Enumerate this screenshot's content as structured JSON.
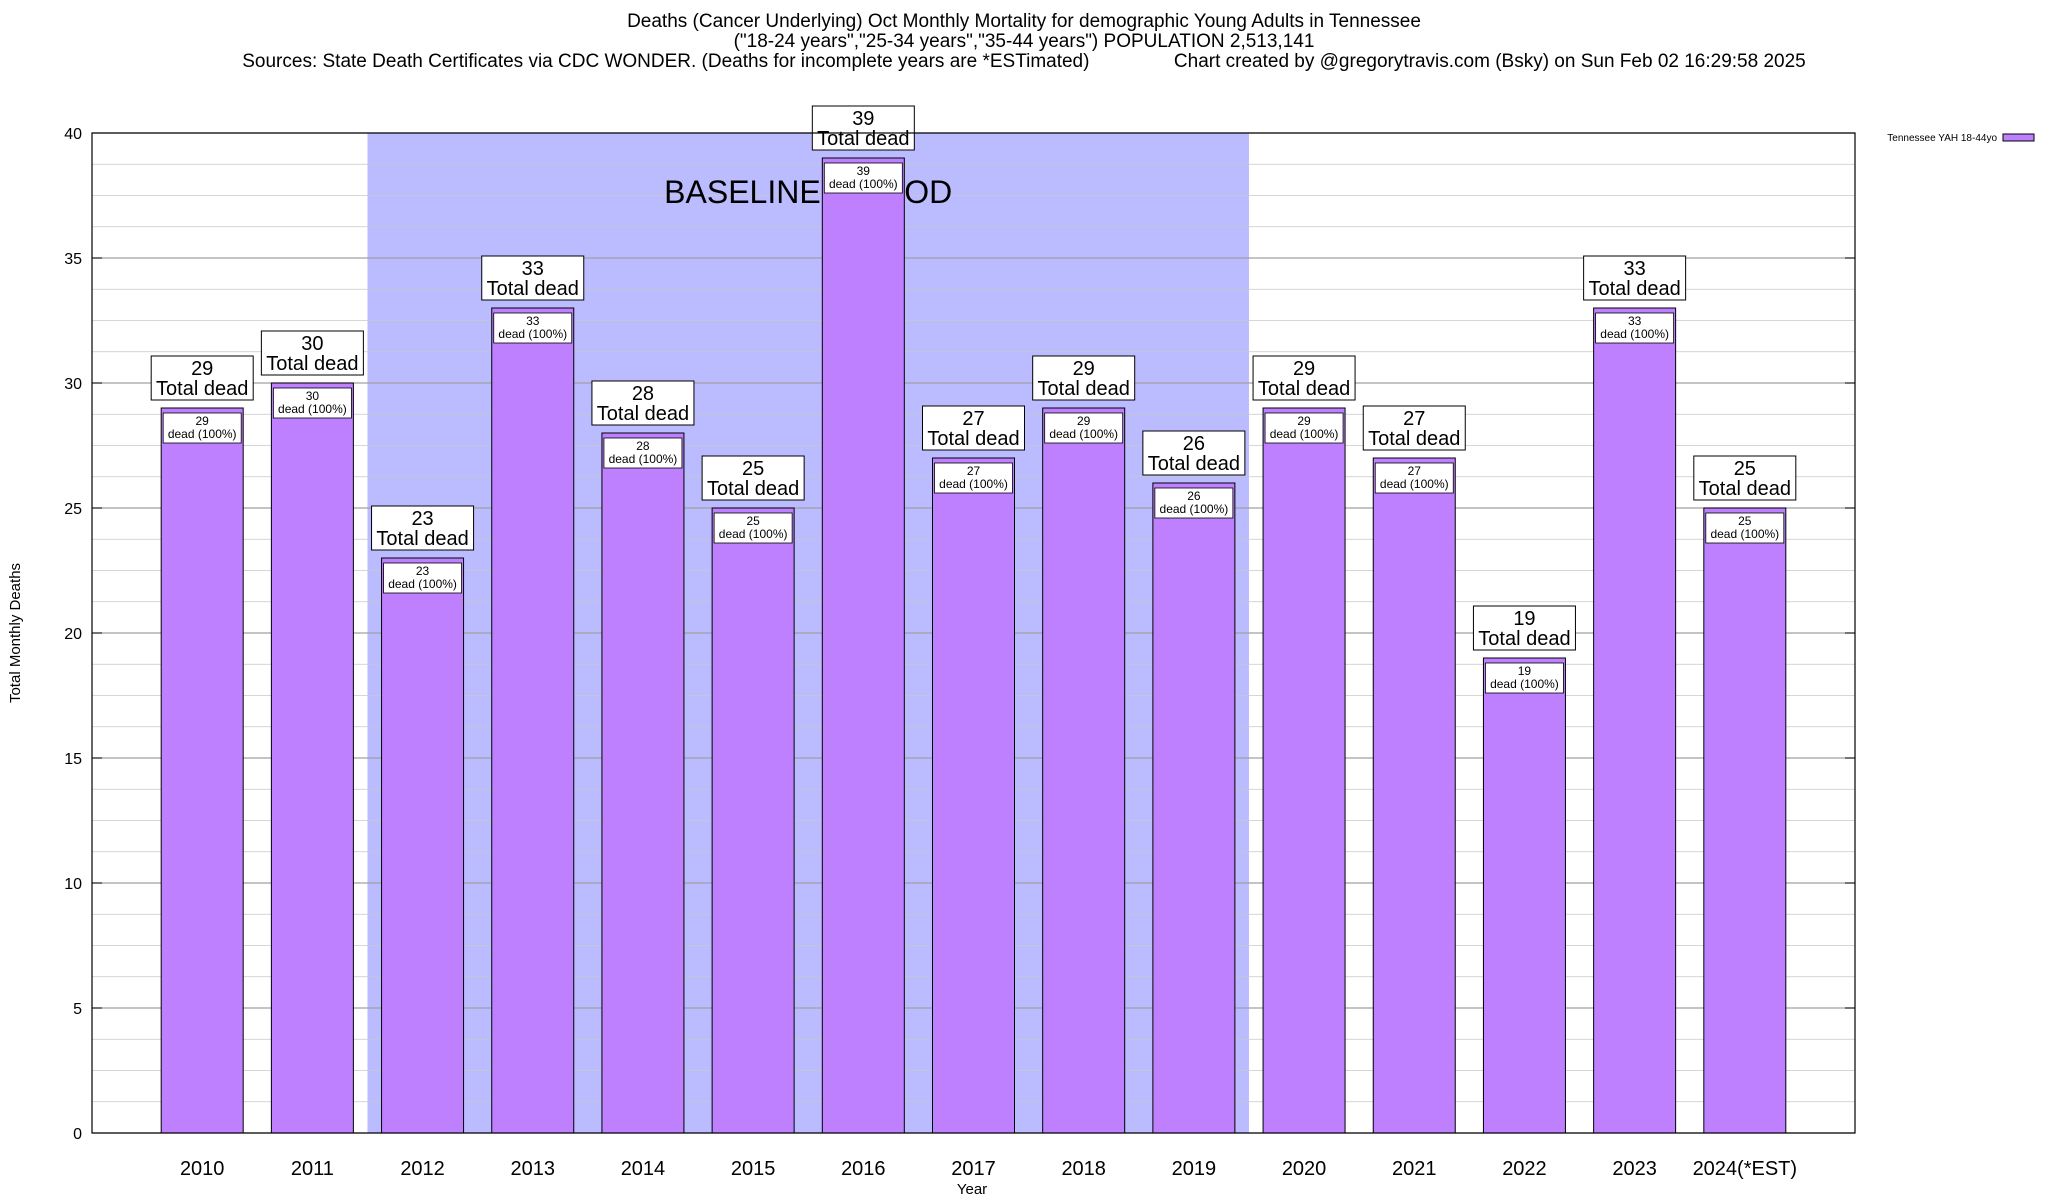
{
  "header": {
    "title_line1": "Deaths (Cancer Underlying) Oct Monthly Mortality for demographic Young Adults in Tennessee",
    "title_line2": "(\"18-24 years\",\"25-34 years\",\"35-44 years\") POPULATION 2,513,141",
    "title_line3": "Sources: State Death Certificates via CDC WONDER. (Deaths for incomplete years are *ESTimated)                Chart created by @gregorytravis.com (Bsky) on Sun Feb 02 16:29:58 2025"
  },
  "chart_data": {
    "type": "bar",
    "title": "Deaths (Cancer Underlying) Oct Monthly Mortality for demographic Young Adults in Tennessee",
    "xlabel": "Year",
    "ylabel": "Total Monthly Deaths",
    "ylim": [
      0,
      40
    ],
    "yticks": [
      0,
      5,
      10,
      15,
      20,
      25,
      30,
      35,
      40
    ],
    "grid": true,
    "categories": [
      "2010",
      "2011",
      "2012",
      "2013",
      "2014",
      "2015",
      "2016",
      "2017",
      "2018",
      "2019",
      "2020",
      "2021",
      "2022",
      "2023",
      "2024(*EST)"
    ],
    "series": [
      {
        "name": "Tennessee YAH 18-44yo",
        "color": "#bf80ff",
        "values": [
          29,
          30,
          23,
          33,
          28,
          25,
          39,
          27,
          29,
          26,
          29,
          27,
          19,
          33,
          25
        ]
      }
    ],
    "bar_label_top_text": "Total dead",
    "bar_label_inner_text": "dead (100%)",
    "shaded_region": {
      "label": "BASELINE PERIOD",
      "from_category": "2012",
      "to_category": "2019",
      "color": "#bbbbff"
    },
    "legend_position": "top-right"
  }
}
